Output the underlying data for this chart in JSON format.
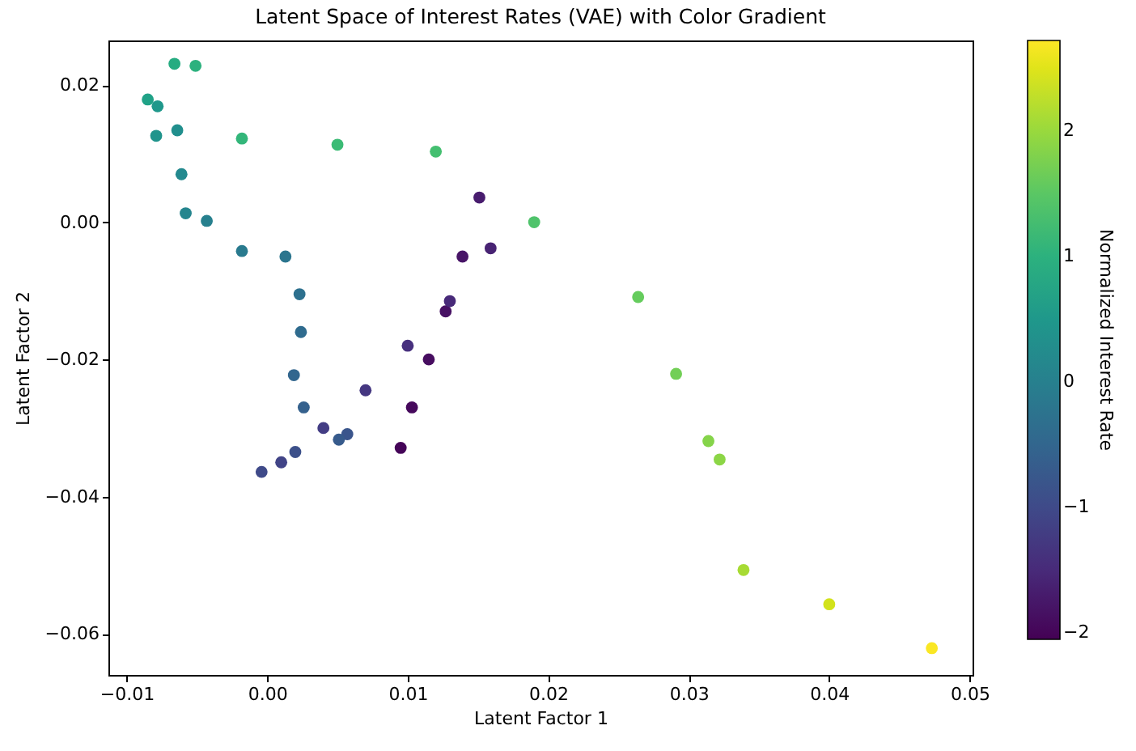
{
  "chart_data": {
    "type": "scatter",
    "title": "Latent Space of Interest Rates (VAE) with Color Gradient",
    "xlabel": "Latent Factor 1",
    "ylabel": "Latent Factor 2",
    "clabel": "Normalized Interest Rate",
    "x": [
      0.0095,
      0.0103,
      0.0115,
      0.0127,
      0.0139,
      0.0151,
      0.0159,
      0.013,
      0.01,
      0.007,
      0.004,
      0.001,
      -0.0004,
      0.002,
      0.0057,
      0.0051,
      0.0026,
      0.0019,
      0.0024,
      0.0023,
      0.0013,
      -0.0018,
      -0.0043,
      -0.0058,
      -0.0061,
      -0.0064,
      -0.0079,
      -0.0078,
      -0.0085,
      -0.0066,
      -0.0051,
      -0.0018,
      0.005,
      0.012,
      0.019,
      0.0264,
      0.0291,
      0.0314,
      0.0322,
      0.0339,
      0.04,
      0.0473
    ],
    "values": [
      -0.0329,
      -0.027,
      -0.02,
      -0.013,
      -0.005,
      0.0036,
      -0.0038,
      -0.0115,
      -0.018,
      -0.0245,
      -0.03,
      -0.035,
      -0.0364,
      -0.0335,
      -0.0309,
      -0.0317,
      -0.027,
      -0.0223,
      -0.016,
      -0.0105,
      -0.005,
      -0.0042,
      0.0002,
      0.0013,
      0.007,
      0.0134,
      0.0126,
      0.0169,
      0.0179,
      0.0231,
      0.0228,
      0.0122,
      0.0113,
      0.0103,
      0.0,
      -0.0109,
      -0.0221,
      -0.0319,
      -0.0346,
      -0.0507,
      -0.0557,
      -0.0621
    ],
    "cvalues": [
      -2.0,
      -1.95,
      -1.9,
      -1.85,
      -1.8,
      -1.7,
      -1.6,
      -1.5,
      -1.4,
      -1.3,
      -1.2,
      -1.1,
      -1.0,
      -0.9,
      -0.8,
      -0.7,
      -0.6,
      -0.5,
      -0.4,
      -0.3,
      -0.2,
      -0.1,
      0.0,
      0.1,
      0.2,
      0.3,
      0.4,
      0.5,
      0.7,
      0.9,
      1.0,
      1.1,
      1.2,
      1.3,
      1.4,
      1.6,
      1.7,
      1.85,
      1.9,
      2.1,
      2.4,
      2.7
    ],
    "xlim": [
      -0.0113,
      0.0502
    ],
    "xticks": [
      {
        "value": -0.01,
        "label": "−0.01"
      },
      {
        "value": 0,
        "label": "0.00"
      },
      {
        "value": 0.01,
        "label": "0.01"
      },
      {
        "value": 0.02,
        "label": "0.02"
      },
      {
        "value": 0.03,
        "label": "0.03"
      },
      {
        "value": 0.04,
        "label": "0.04"
      },
      {
        "value": 0.05,
        "label": "0.05"
      }
    ],
    "ylim": [
      -0.066,
      0.0265
    ],
    "yticks": [
      {
        "value": -0.06,
        "label": "−0.06"
      },
      {
        "value": -0.04,
        "label": "−0.04"
      },
      {
        "value": -0.02,
        "label": "−0.02"
      },
      {
        "value": 0,
        "label": "0.00"
      },
      {
        "value": 0.02,
        "label": "0.02"
      }
    ],
    "clim": [
      -2.05,
      2.72
    ],
    "cticks": [
      {
        "value": -2,
        "label": "−2"
      },
      {
        "value": -1,
        "label": "−1"
      },
      0,
      1,
      2
    ],
    "marker": "circle",
    "grid": false
  }
}
